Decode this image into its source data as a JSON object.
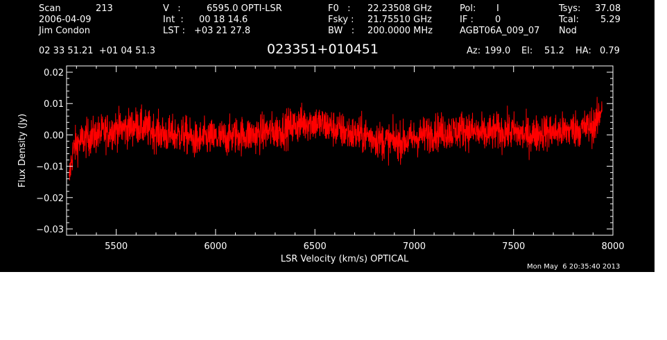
{
  "header": {
    "scan_label": "Scan",
    "scan_value": "213",
    "date": "2006-04-09",
    "observer": "Jim Condon",
    "v_label": "V   :",
    "v_value": "6595.0 OPTI-LSR",
    "int_label": "Int  :",
    "int_value": "00 18 14.6",
    "lst_label": "LST :",
    "lst_value": "+03 21 27.8",
    "f0_label": "F0   :",
    "f0_value": "22.23508 GHz",
    "fsky_label": "Fsky :",
    "fsky_value": "21.75510 GHz",
    "bw_label": "BW   :",
    "bw_value": "200.0000 MHz",
    "pol_label": "Pol:",
    "pol_value": "I",
    "if_label": "IF :",
    "if_value": "0",
    "project": "AGBT06A_009_07",
    "tsys_label": "Tsys:",
    "tsys_value": "37.08",
    "tcal_label": "Tcal:",
    "tcal_value": "5.29",
    "mode": "Nod",
    "coords": "02 33 51.21  +01 04 51.3",
    "source": "023351+010451",
    "az_label": "Az:",
    "az_value": "199.0",
    "el_label": "El:",
    "el_value": "51.2",
    "ha_label": "HA:",
    "ha_value": "0.79",
    "timestamp": "Mon May  6 20:35:40 2013"
  },
  "colors": {
    "background": "#000000",
    "axes": "#ffffff",
    "series": "#ff0000"
  },
  "chart_data": {
    "type": "line",
    "xlabel": "LSR Velocity (km/s) OPTICAL",
    "ylabel": "Flux Density (Jy)",
    "xlim": [
      5250,
      8000
    ],
    "ylim": [
      -0.032,
      0.022
    ],
    "xticks": [
      5500,
      6000,
      6500,
      7000,
      7500,
      8000
    ],
    "xtick_labels": [
      "5500",
      "6000",
      "6500",
      "7000",
      "7500",
      "8000"
    ],
    "yticks": [
      -0.03,
      -0.02,
      -0.01,
      0.0,
      0.01,
      0.02
    ],
    "ytick_labels": [
      "−0.03",
      "−0.02",
      "−0.01",
      "0.00",
      "0.01",
      "0.02"
    ],
    "grid": false,
    "series": [
      {
        "x": [
          5262,
          5270,
          5280,
          5290,
          5300,
          5320,
          5350,
          5400,
          5450,
          5500,
          5550,
          5600,
          5650,
          5700,
          5750,
          5800,
          5850,
          5900,
          5950,
          6000,
          6050,
          6100,
          6150,
          6200,
          6250,
          6300,
          6350,
          6400,
          6450,
          6500,
          6550,
          6600,
          6650,
          6700,
          6750,
          6800,
          6850,
          6900,
          6950,
          7000,
          7050,
          7100,
          7150,
          7200,
          7250,
          7300,
          7350,
          7400,
          7450,
          7500,
          7550,
          7600,
          7650,
          7700,
          7750,
          7800,
          7850,
          7900,
          7920,
          7935,
          7945
        ],
        "y": [
          -0.016,
          -0.01,
          -0.006,
          -0.004,
          -0.003,
          -0.002,
          -0.001,
          0.0,
          0.001,
          0.002,
          0.002,
          0.003,
          0.002,
          0.001,
          0.0,
          0.0,
          0.0,
          -0.002,
          -0.001,
          -0.001,
          -0.001,
          0.0,
          0.0,
          0.0,
          0.001,
          0.001,
          0.002,
          0.003,
          0.004,
          0.004,
          0.003,
          0.002,
          0.001,
          0.0,
          0.0,
          -0.001,
          -0.002,
          -0.002,
          -0.002,
          -0.001,
          0.0,
          0.001,
          0.001,
          0.001,
          0.002,
          0.001,
          0.0,
          0.001,
          0.001,
          0.001,
          0.0,
          0.0,
          0.001,
          0.001,
          0.001,
          0.002,
          0.002,
          0.003,
          0.004,
          0.007,
          0.01
        ],
        "noise_rms": 0.003
      }
    ]
  }
}
